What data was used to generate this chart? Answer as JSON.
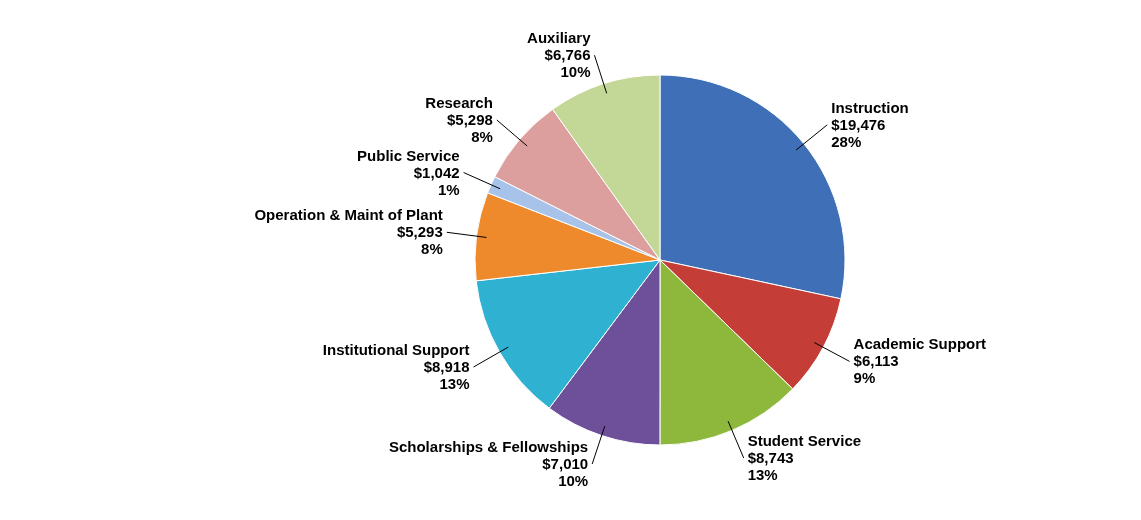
{
  "chart_data": {
    "type": "pie",
    "categories": [
      "Instruction",
      "Academic Support",
      "Student Service",
      "Scholarships & Fellowships",
      "Institutional Support",
      "Operation & Maint of Plant",
      "Public Service",
      "Research",
      "Auxiliary"
    ],
    "values": [
      19476,
      6113,
      8743,
      7010,
      8918,
      5293,
      1042,
      5298,
      6766
    ],
    "value_labels": [
      "$19,476\n28%",
      "$6,113\n9%",
      "$8,743\n13%",
      "$7,010\n10%",
      "$8,918\n13%",
      "$5,293\n8%",
      "$1,042\n1%",
      "$5,298\n8%",
      "$6,766\n10%"
    ],
    "colors": [
      "#3f6fb6",
      "#c43d37",
      "#8db83c",
      "#6e4f99",
      "#2fb1d1",
      "#ef8a2c",
      "#a8c3ea",
      "#dc9f9d",
      "#c3d797"
    ]
  }
}
